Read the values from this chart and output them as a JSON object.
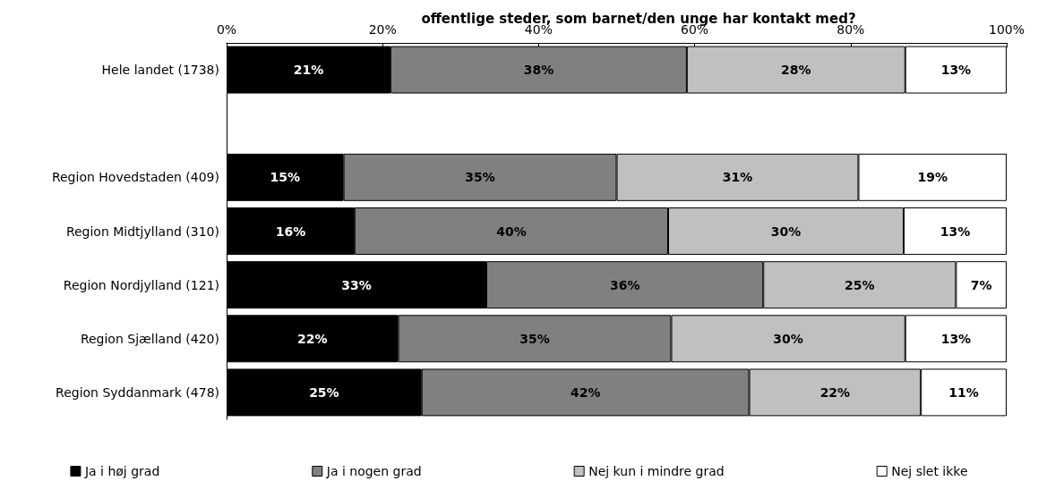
{
  "chart_data": {
    "type": "bar",
    "orientation": "horizontal",
    "stacked": true,
    "title": "offentlige steder, som barnet/den unge har kontakt med?",
    "categories": [
      "Hele landet (1738)",
      null,
      "Region Hovedstaden (409)",
      "Region Midtjylland (310)",
      "Region Nordjylland (121)",
      "Region Sjælland (420)",
      "Region Syddanmark (478)"
    ],
    "series": [
      {
        "name": "Ja i høj grad",
        "color": "#000000",
        "values": [
          21,
          null,
          15,
          16.4,
          33.3,
          22,
          25
        ],
        "value_labels": [
          "21%",
          null,
          "15%",
          "16%",
          "33%",
          "22%",
          "25%"
        ]
      },
      {
        "name": "Ja i nogen grad",
        "color": "#808080",
        "values": [
          38,
          null,
          35,
          40.2,
          35.5,
          35,
          42
        ],
        "value_labels": [
          "38%",
          null,
          "35%",
          "40%",
          "36%",
          "35%",
          "42%"
        ]
      },
      {
        "name": "Nej kun i mindre grad",
        "color": "#c0c0c0",
        "values": [
          28,
          null,
          31,
          30.2,
          24.7,
          30,
          22
        ],
        "value_labels": [
          "28%",
          null,
          "31%",
          "30%",
          "25%",
          "30%",
          "22%"
        ]
      },
      {
        "name": "Nej slet ikke",
        "color": "#ffffff",
        "values": [
          13,
          null,
          19,
          13.2,
          6.5,
          13,
          11
        ],
        "value_labels": [
          "13%",
          null,
          "19%",
          "13%",
          "7%",
          "13%",
          "11%"
        ]
      }
    ],
    "xlim": [
      0,
      100
    ],
    "xticks": [
      {
        "value": 0,
        "label": "0%"
      },
      {
        "value": 20,
        "label": "20%"
      },
      {
        "value": 40,
        "label": "40%"
      },
      {
        "value": 60,
        "label": "60%"
      },
      {
        "value": 80,
        "label": "80%"
      },
      {
        "value": 100,
        "label": "100%"
      }
    ],
    "grid": false,
    "legend": "bottom"
  }
}
